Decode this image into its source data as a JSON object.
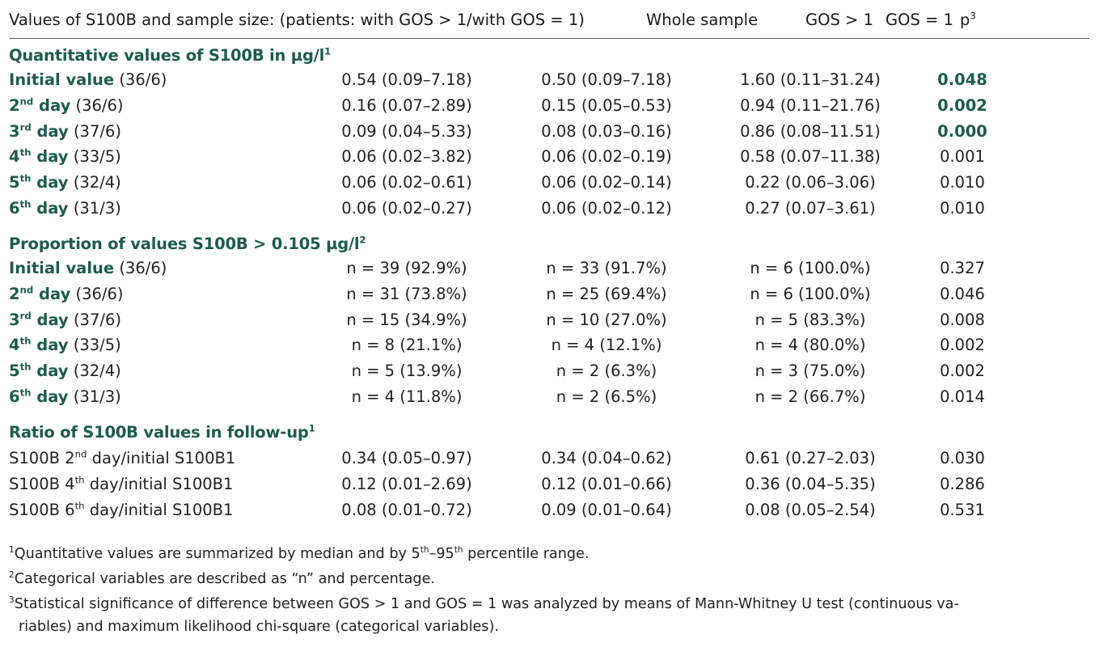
{
  "header": {
    "col_label": "Values of S100B and sample size: (patients: with GOS > 1/with GOS = 1)",
    "col_whole": "Whole sample",
    "col_gos_gt1": "GOS > 1",
    "col_gos_eq1": "GOS = 1",
    "col_p": "p",
    "col_p_sup": "3"
  },
  "sections": [
    {
      "title": "Quantitative values of S100B in µg/l",
      "title_sup": "1",
      "rows": [
        {
          "label": "Initial value",
          "label_sup": "",
          "label_rest": "",
          "n": "(36/6)",
          "whole": "0.54 (0.09–7.18)",
          "gos_gt1": "0.50 (0.09–7.18)",
          "gos_eq1": "1.60 (0.11–31.24)",
          "p": "0.048",
          "p_sig": true
        },
        {
          "label": "2",
          "label_sup": "nd",
          "label_rest": " day",
          "n": "(36/6)",
          "whole": "0.16 (0.07–2.89)",
          "gos_gt1": "0.15 (0.05–0.53)",
          "gos_eq1": "0.94 (0.11–21.76)",
          "p": "0.002",
          "p_sig": true
        },
        {
          "label": "3",
          "label_sup": "rd",
          "label_rest": " day",
          "n": "(37/6)",
          "whole": "0.09 (0.04–5.33)",
          "gos_gt1": "0.08 (0.03–0.16)",
          "gos_eq1": "0.86 (0.08–11.51)",
          "p": "0.000",
          "p_sig": true
        },
        {
          "label": "4",
          "label_sup": "th",
          "label_rest": " day",
          "n": "(33/5)",
          "whole": "0.06 (0.02–3.82)",
          "gos_gt1": "0.06 (0.02–0.19)",
          "gos_eq1": "0.58 (0.07–11.38)",
          "p": "0.001",
          "p_sig": false
        },
        {
          "label": "5",
          "label_sup": "th",
          "label_rest": " day",
          "n": "(32/4)",
          "whole": "0.06 (0.02–0.61)",
          "gos_gt1": "0.06 (0.02–0.14)",
          "gos_eq1": "0.22 (0.06–3.06)",
          "p": "0.010",
          "p_sig": false
        },
        {
          "label": "6",
          "label_sup": "th",
          "label_rest": " day",
          "n": "(31/3)",
          "whole": "0.06 (0.02–0.27)",
          "gos_gt1": "0.06 (0.02–0.12)",
          "gos_eq1": "0.27 (0.07–3.61)",
          "p": "0.010",
          "p_sig": false
        }
      ]
    },
    {
      "title": "Proportion of values S100B > 0.105 µg/l",
      "title_sup": "2",
      "rows": [
        {
          "label": "Initial value",
          "label_sup": "",
          "label_rest": "",
          "n": "(36/6)",
          "whole": "n = 39 (92.9%)",
          "gos_gt1": "n = 33 (91.7%)",
          "gos_eq1": "n = 6 (100.0%)",
          "p": "0.327",
          "p_sig": false
        },
        {
          "label": "2",
          "label_sup": "nd",
          "label_rest": " day",
          "n": "(36/6)",
          "whole": "n = 31 (73.8%)",
          "gos_gt1": "n = 25 (69.4%)",
          "gos_eq1": "n = 6 (100.0%)",
          "p": "0.046",
          "p_sig": false
        },
        {
          "label": "3",
          "label_sup": "rd",
          "label_rest": " day",
          "n": "(37/6)",
          "whole": "n = 15 (34.9%)",
          "gos_gt1": "n = 10 (27.0%)",
          "gos_eq1": "n = 5 (83.3%)",
          "p": "0.008",
          "p_sig": false
        },
        {
          "label": "4",
          "label_sup": "th",
          "label_rest": " day",
          "n": "(33/5)",
          "whole": "n = 8 (21.1%)",
          "gos_gt1": "n = 4 (12.1%)",
          "gos_eq1": "n = 4 (80.0%)",
          "p": "0.002",
          "p_sig": false
        },
        {
          "label": "5",
          "label_sup": "th",
          "label_rest": " day",
          "n": "(32/4)",
          "whole": "n = 5 (13.9%)",
          "gos_gt1": "n = 2 (6.3%)",
          "gos_eq1": "n = 3 (75.0%)",
          "p": "0.002",
          "p_sig": false
        },
        {
          "label": "6",
          "label_sup": "th",
          "label_rest": " day",
          "n": "(31/3)",
          "whole": "n = 4 (11.8%)",
          "gos_gt1": "n = 2 (6.5%)",
          "gos_eq1": "n = 2 (66.7%)",
          "p": "0.014",
          "p_sig": false
        }
      ]
    },
    {
      "title": "Ratio of S100B values in follow-up",
      "title_sup": "1",
      "rows": [
        {
          "label_a": "S100B 2",
          "label_sup": "nd",
          "label_b": " day/initial S100B1",
          "whole": "0.34 (0.05–0.97)",
          "gos_gt1": "0.34 (0.04–0.62)",
          "gos_eq1": "0.61 (0.27–2.03)",
          "p": "0.030",
          "p_sig": false
        },
        {
          "label_a": "S100B 4",
          "label_sup": "th",
          "label_b": " day/initial S100B1",
          "whole": "0.12 (0.01–2.69)",
          "gos_gt1": "0.12 (0.01–0.66)",
          "gos_eq1": "0.36 (0.04–5.35)",
          "p": "0.286",
          "p_sig": false
        },
        {
          "label_a": "S100B 6",
          "label_sup": "th",
          "label_b": " day/initial S100B1",
          "whole": "0.08 (0.01–0.72)",
          "gos_gt1": "0.09 (0.01–0.64)",
          "gos_eq1": "0.08 (0.05–2.54)",
          "p": "0.531",
          "p_sig": false
        }
      ]
    }
  ],
  "footnotes": {
    "f1_mark": "1",
    "f1_a": "Quantitative values are summarized by median and by 5",
    "f1_sup1": "th",
    "f1_b": "–95",
    "f1_sup2": "th",
    "f1_c": " percentile range.",
    "f2_mark": "2",
    "f2": "Categorical variables are described as “n” and percentage.",
    "f3_mark": "3",
    "f3_line1": "Statistical significance of difference between GOS > 1 and GOS = 1 was analyzed by means of Mann-Whitney U test (continuous va-",
    "f3_line2": "riables) and maximum likelihood chi-square (categorical variables)."
  }
}
